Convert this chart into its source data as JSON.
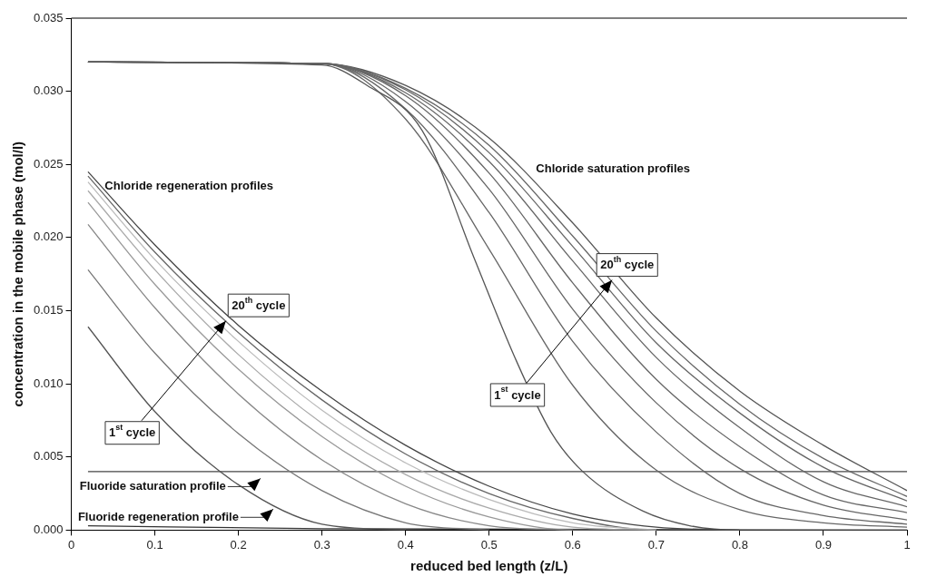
{
  "chart_data": {
    "type": "line",
    "xlabel": "reduced bed length (z/L)",
    "ylabel": "concentration in the mobile phase (mol/l)",
    "xlim": [
      0,
      1
    ],
    "xticks": [
      0,
      0.1,
      0.2,
      0.3,
      0.4,
      0.5,
      0.6,
      0.7,
      0.8,
      0.9,
      1
    ],
    "ylim": [
      0,
      0.035
    ],
    "yticks": [
      {
        "value": 0,
        "label": "0.000"
      },
      {
        "value": 0.005,
        "label": "0.005"
      },
      {
        "value": 0.01,
        "label": "0.010"
      },
      {
        "value": 0.015,
        "label": "0.015"
      },
      {
        "value": 0.02,
        "label": "0.020"
      },
      {
        "value": 0.025,
        "label": "0.025"
      },
      {
        "value": 0.03,
        "label": "0.030"
      },
      {
        "value": 0.035,
        "label": "0.035"
      }
    ],
    "grid": false,
    "legend": false,
    "marker": "none",
    "line_style": "solid",
    "series": [
      {
        "color": "#555555",
        "x": [
          0.02,
          0.1,
          0.2,
          0.3,
          0.4
        ],
        "values": [
          0.0139,
          0.0081,
          0.0031,
          0.0004,
          0
        ]
      },
      {
        "color": "#777777",
        "x": [
          0.02,
          0.1,
          0.2,
          0.3,
          0.4,
          0.5
        ],
        "values": [
          0.0178,
          0.0121,
          0.0066,
          0.0027,
          0.0005,
          0
        ]
      },
      {
        "color": "#888888",
        "x": [
          0.02,
          0.1,
          0.2,
          0.3,
          0.4,
          0.5,
          0.6
        ],
        "values": [
          0.0209,
          0.0152,
          0.0093,
          0.0048,
          0.0018,
          0.0003,
          0
        ]
      },
      {
        "color": "#999999",
        "x": [
          0.02,
          0.1,
          0.2,
          0.3,
          0.4,
          0.5,
          0.6,
          0.7
        ],
        "values": [
          0.0224,
          0.0168,
          0.011,
          0.0064,
          0.003,
          0.0009,
          0,
          0
        ]
      },
      {
        "color": "#aaaaaa",
        "x": [
          0.02,
          0.1,
          0.2,
          0.3,
          0.4,
          0.5,
          0.6,
          0.7
        ],
        "values": [
          0.0232,
          0.0178,
          0.012,
          0.0073,
          0.0038,
          0.0015,
          0.0002,
          0
        ]
      },
      {
        "color": "#bbbbbb",
        "x": [
          0.02,
          0.1,
          0.2,
          0.3,
          0.4,
          0.5,
          0.6,
          0.7
        ],
        "values": [
          0.0238,
          0.0185,
          0.0129,
          0.0082,
          0.0046,
          0.0021,
          0.0005,
          0
        ]
      },
      {
        "color": "#666666",
        "x": [
          0.02,
          0.1,
          0.2,
          0.3,
          0.4,
          0.5,
          0.6,
          0.7,
          0.8
        ],
        "values": [
          0.0242,
          0.019,
          0.0135,
          0.0089,
          0.0052,
          0.0025,
          0.0008,
          0,
          0
        ]
      },
      {
        "color": "#444444",
        "x": [
          0.02,
          0.1,
          0.2,
          0.3,
          0.4,
          0.5,
          0.6,
          0.7,
          0.8
        ],
        "values": [
          0.0245,
          0.0195,
          0.014,
          0.0095,
          0.0058,
          0.003,
          0.0011,
          0.0002,
          0
        ]
      },
      {
        "color": "#555555",
        "x": [
          0.02,
          0.3,
          0.354,
          0.42,
          0.482,
          0.53,
          0.574,
          0.612,
          0.684,
          0.74,
          0.8,
          1
        ],
        "values": [
          0.032,
          0.0318,
          0.0304,
          0.0273,
          0.0186,
          0.0119,
          0.0067,
          0.004,
          0.0013,
          0.0003,
          0,
          0
        ]
      },
      {
        "color": "#666666",
        "x": [
          0.02,
          0.3,
          0.4,
          0.5,
          0.6,
          0.7,
          0.8,
          0.9,
          1
        ],
        "values": [
          0.032,
          0.0319,
          0.0281,
          0.0192,
          0.0099,
          0.0041,
          0.0014,
          0.0005,
          0.0002
        ]
      },
      {
        "color": "#666666",
        "x": [
          0.02,
          0.3,
          0.4,
          0.5,
          0.6,
          0.7,
          0.8,
          0.9,
          1
        ],
        "values": [
          0.032,
          0.0319,
          0.0288,
          0.0217,
          0.0129,
          0.0067,
          0.0025,
          0.001,
          0.0004
        ]
      },
      {
        "color": "#666666",
        "x": [
          0.02,
          0.3,
          0.4,
          0.5,
          0.6,
          0.7,
          0.8,
          0.9,
          1
        ],
        "values": [
          0.032,
          0.0319,
          0.0293,
          0.0233,
          0.0151,
          0.0087,
          0.0042,
          0.0017,
          0.0007
        ]
      },
      {
        "color": "#666666",
        "x": [
          0.02,
          0.3,
          0.4,
          0.5,
          0.6,
          0.7,
          0.8,
          0.9,
          1
        ],
        "values": [
          0.032,
          0.0319,
          0.0297,
          0.0244,
          0.0169,
          0.0103,
          0.0057,
          0.0024,
          0.0012
        ]
      },
      {
        "color": "#666666",
        "x": [
          0.02,
          0.3,
          0.4,
          0.5,
          0.6,
          0.7,
          0.8,
          0.9,
          1
        ],
        "values": [
          0.032,
          0.0319,
          0.0299,
          0.0252,
          0.0184,
          0.0118,
          0.007,
          0.0033,
          0.0016
        ]
      },
      {
        "color": "#666666",
        "x": [
          0.02,
          0.3,
          0.4,
          0.5,
          0.6,
          0.7,
          0.8,
          0.9,
          1
        ],
        "values": [
          0.032,
          0.0319,
          0.0301,
          0.0258,
          0.0194,
          0.0128,
          0.008,
          0.0043,
          0.002
        ]
      },
      {
        "color": "#666666",
        "x": [
          0.02,
          0.3,
          0.4,
          0.5,
          0.6,
          0.7,
          0.8,
          0.9,
          1
        ],
        "values": [
          0.032,
          0.0319,
          0.0302,
          0.0263,
          0.0201,
          0.0136,
          0.0086,
          0.0049,
          0.0023
        ]
      },
      {
        "color": "#555555",
        "x": [
          0.02,
          0.3,
          0.4,
          0.5,
          0.6,
          0.7,
          0.8,
          0.9,
          1
        ],
        "values": [
          0.032,
          0.0319,
          0.0304,
          0.0268,
          0.021,
          0.0145,
          0.0095,
          0.0058,
          0.0027
        ]
      },
      {
        "color": "#444444",
        "x": [
          0.02,
          1
        ],
        "values": [
          0.004,
          0.004
        ]
      },
      {
        "color": "#333333",
        "x": [
          0.02,
          0.3,
          1
        ],
        "values": [
          0.0003,
          0.0001,
          0
        ]
      }
    ],
    "annotations": [
      "Chloride regeneration profiles",
      "Chloride saturation profiles",
      "20$^{th}$ cycle",
      {
        "text": "1$^{st}$ cycle",
        "x": 0.185,
        "y": 0.0143
      },
      "20$^{th}$ cycle",
      {
        "text": "1$^{st}$ cycle",
        "x": 0.647,
        "y": 0.0171
      },
      "Fluoride saturation profile",
      "Fluoride regeneration profile"
    ]
  }
}
